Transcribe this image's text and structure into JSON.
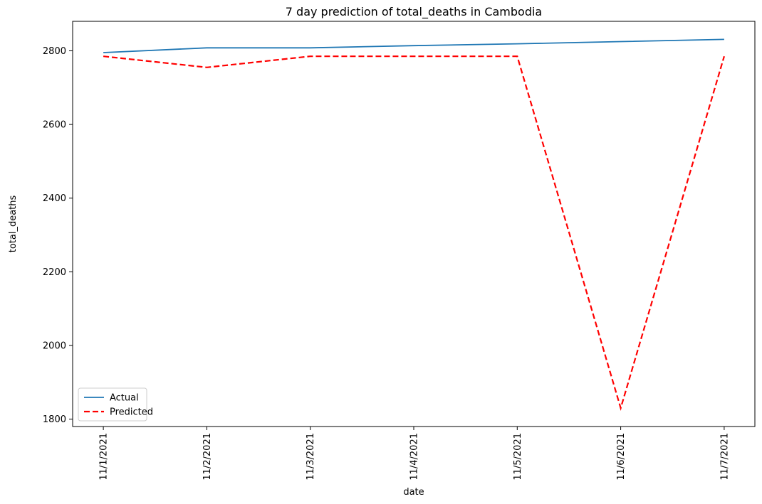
{
  "chart_data": {
    "type": "line",
    "title": "7 day prediction of total_deaths in Cambodia",
    "xlabel": "date",
    "ylabel": "total_deaths",
    "x": [
      "11/1/2021",
      "11/2/2021",
      "11/3/2021",
      "11/4/2021",
      "11/5/2021",
      "11/6/2021",
      "11/7/2021"
    ],
    "ylim": [
      1780,
      2880
    ],
    "yticks": [
      1800,
      2000,
      2200,
      2400,
      2600,
      2800
    ],
    "grid": false,
    "legend": "lower-left",
    "series": [
      {
        "name": "Actual",
        "values": [
          2795,
          2808,
          2808,
          2814,
          2819,
          2825,
          2831
        ],
        "color": "#1f77b4",
        "style": "solid"
      },
      {
        "name": "Predicted",
        "values": [
          2785,
          2755,
          2785,
          2785,
          2785,
          1830,
          2785
        ],
        "color": "#ff0000",
        "style": "dashed"
      }
    ]
  }
}
